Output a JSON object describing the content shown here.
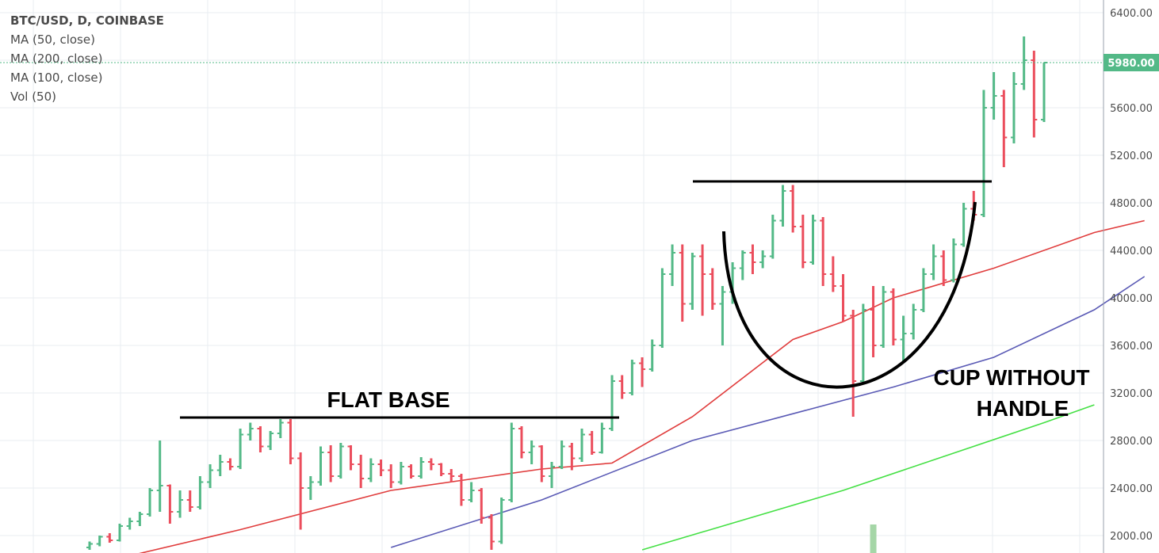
{
  "legend": {
    "symbol": "BTC/USD, D, COINBASE",
    "ma50": "MA (50, close)",
    "ma200": "MA (200, close)",
    "ma100": "MA (100, close)",
    "vol": "Vol (50)"
  },
  "colors": {
    "up": "#53b987",
    "down": "#eb4d5c",
    "ma50": "#e03c3c",
    "ma100": "#5a5ab5",
    "ma200": "#44e044",
    "price_line": "#53b987",
    "volume": "#a5d6a7",
    "grid": "#e9eef2",
    "annotation": "#000000"
  },
  "annotations": {
    "flat_base": "FLAT BASE",
    "cup_line1": "CUP WITHOUT",
    "cup_line2": "HANDLE"
  },
  "chart_data": {
    "type": "candlestick",
    "title": "BTC/USD, D, COINBASE",
    "ylim": [
      1880,
      6520
    ],
    "y_ticks": [
      2000,
      2400,
      2800,
      3200,
      3600,
      4000,
      4400,
      4800,
      5200,
      5600,
      6000,
      6400
    ],
    "y_tick_labels": [
      "2000.00",
      "2400.00",
      "2800.00",
      "3200.00",
      "3600.00",
      "4000.00",
      "4400.00",
      "4800.00",
      "5200.00",
      "5600.00",
      "6000.00",
      "6400.00"
    ],
    "last_price": 5980,
    "last_price_label": "5980.00",
    "grid": true,
    "candles": [
      [
        1900,
        1950,
        1880,
        1930
      ],
      [
        1930,
        2000,
        1910,
        1990
      ],
      [
        1990,
        2020,
        1940,
        1960
      ],
      [
        1960,
        2100,
        1950,
        2080
      ],
      [
        2080,
        2150,
        2050,
        2120
      ],
      [
        2120,
        2200,
        2080,
        2180
      ],
      [
        2180,
        2400,
        2160,
        2380
      ],
      [
        2380,
        2800,
        2200,
        2420
      ],
      [
        2420,
        2430,
        2100,
        2200
      ],
      [
        2200,
        2380,
        2150,
        2300
      ],
      [
        2300,
        2380,
        2200,
        2240
      ],
      [
        2240,
        2500,
        2220,
        2450
      ],
      [
        2450,
        2600,
        2400,
        2550
      ],
      [
        2550,
        2680,
        2500,
        2620
      ],
      [
        2620,
        2650,
        2550,
        2580
      ],
      [
        2580,
        2900,
        2560,
        2850
      ],
      [
        2850,
        2950,
        2800,
        2900
      ],
      [
        2900,
        2920,
        2700,
        2750
      ],
      [
        2750,
        2880,
        2720,
        2860
      ],
      [
        2860,
        2980,
        2820,
        2950
      ],
      [
        2950,
        2980,
        2600,
        2650
      ],
      [
        2650,
        2700,
        2050,
        2400
      ],
      [
        2400,
        2500,
        2300,
        2450
      ],
      [
        2450,
        2750,
        2420,
        2700
      ],
      [
        2700,
        2760,
        2450,
        2500
      ],
      [
        2500,
        2780,
        2480,
        2750
      ],
      [
        2750,
        2760,
        2550,
        2600
      ],
      [
        2600,
        2680,
        2400,
        2480
      ],
      [
        2480,
        2650,
        2450,
        2600
      ],
      [
        2600,
        2640,
        2500,
        2550
      ],
      [
        2550,
        2600,
        2400,
        2450
      ],
      [
        2450,
        2620,
        2430,
        2580
      ],
      [
        2580,
        2600,
        2480,
        2500
      ],
      [
        2500,
        2660,
        2480,
        2620
      ],
      [
        2620,
        2650,
        2550,
        2600
      ],
      [
        2600,
        2610,
        2500,
        2520
      ],
      [
        2520,
        2560,
        2450,
        2500
      ],
      [
        2500,
        2520,
        2250,
        2300
      ],
      [
        2300,
        2450,
        2280,
        2380
      ],
      [
        2380,
        2400,
        2100,
        2150
      ],
      [
        2150,
        2180,
        1880,
        1950
      ],
      [
        1950,
        2320,
        1930,
        2300
      ],
      [
        2300,
        2950,
        2280,
        2900
      ],
      [
        2900,
        2920,
        2650,
        2700
      ],
      [
        2700,
        2800,
        2600,
        2750
      ],
      [
        2750,
        2760,
        2450,
        2500
      ],
      [
        2500,
        2620,
        2400,
        2580
      ],
      [
        2580,
        2800,
        2560,
        2750
      ],
      [
        2750,
        2780,
        2550,
        2650
      ],
      [
        2650,
        2900,
        2620,
        2850
      ],
      [
        2850,
        2880,
        2680,
        2700
      ],
      [
        2700,
        2950,
        2690,
        2900
      ],
      [
        2900,
        3350,
        2880,
        3300
      ],
      [
        3300,
        3350,
        3150,
        3200
      ],
      [
        3200,
        3480,
        3180,
        3450
      ],
      [
        3450,
        3500,
        3250,
        3400
      ],
      [
        3400,
        3650,
        3380,
        3600
      ],
      [
        3600,
        4250,
        3580,
        4200
      ],
      [
        4200,
        4450,
        4100,
        4380
      ],
      [
        4380,
        4450,
        3800,
        3950
      ],
      [
        3950,
        4380,
        3900,
        4350
      ],
      [
        4350,
        4450,
        3850,
        4200
      ],
      [
        4200,
        4250,
        3900,
        3950
      ],
      [
        3950,
        4100,
        3600,
        4050
      ],
      [
        4050,
        4300,
        3950,
        4250
      ],
      [
        4250,
        4400,
        4150,
        4380
      ],
      [
        4380,
        4450,
        4200,
        4300
      ],
      [
        4300,
        4400,
        4250,
        4350
      ],
      [
        4350,
        4700,
        4330,
        4650
      ],
      [
        4650,
        4950,
        4600,
        4900
      ],
      [
        4900,
        4950,
        4550,
        4600
      ],
      [
        4600,
        4700,
        4250,
        4300
      ],
      [
        4300,
        4700,
        4280,
        4650
      ],
      [
        4650,
        4680,
        4100,
        4200
      ],
      [
        4200,
        4350,
        4050,
        4100
      ],
      [
        4100,
        4200,
        3800,
        3850
      ],
      [
        3850,
        3900,
        3000,
        3300
      ],
      [
        3300,
        3950,
        3280,
        3900
      ],
      [
        3900,
        4100,
        3500,
        3600
      ],
      [
        3600,
        4100,
        3580,
        4050
      ],
      [
        4050,
        4080,
        3600,
        3650
      ],
      [
        3650,
        3850,
        3450,
        3700
      ],
      [
        3700,
        3950,
        3650,
        3900
      ],
      [
        3900,
        4250,
        3880,
        4200
      ],
      [
        4200,
        4450,
        4150,
        4350
      ],
      [
        4350,
        4400,
        4100,
        4150
      ],
      [
        4150,
        4500,
        4130,
        4450
      ],
      [
        4450,
        4800,
        4430,
        4750
      ],
      [
        4750,
        4900,
        4650,
        4700
      ],
      [
        4700,
        5750,
        4680,
        5600
      ],
      [
        5600,
        5900,
        5500,
        5700
      ],
      [
        5700,
        5750,
        5100,
        5350
      ],
      [
        5350,
        5900,
        5300,
        5800
      ],
      [
        5800,
        6200,
        5750,
        6000
      ],
      [
        6000,
        6080,
        5350,
        5500
      ],
      [
        5500,
        5980,
        5480,
        5980
      ]
    ],
    "series": [
      {
        "name": "MA (50, close)",
        "color": "#e03c3c",
        "values": [
          [
            0,
            1750
          ],
          [
            15,
            2050
          ],
          [
            30,
            2380
          ],
          [
            40,
            2500
          ],
          [
            45,
            2560
          ],
          [
            52,
            2610
          ],
          [
            60,
            3000
          ],
          [
            70,
            3650
          ],
          [
            75,
            3800
          ],
          [
            80,
            4000
          ],
          [
            90,
            4250
          ],
          [
            100,
            4550
          ],
          [
            105,
            4650
          ]
        ]
      },
      {
        "name": "MA (100, close)",
        "color": "#5a5ab5",
        "values": [
          [
            30,
            1900
          ],
          [
            45,
            2300
          ],
          [
            60,
            2800
          ],
          [
            80,
            3250
          ],
          [
            90,
            3500
          ],
          [
            100,
            3900
          ],
          [
            105,
            4180
          ]
        ]
      },
      {
        "name": "MA (200, close)",
        "color": "#44e044",
        "values": [
          [
            55,
            1880
          ],
          [
            75,
            2380
          ],
          [
            95,
            2950
          ],
          [
            100,
            3100
          ]
        ]
      }
    ],
    "volume": [
      {
        "index": 78,
        "value": 1
      }
    ]
  }
}
